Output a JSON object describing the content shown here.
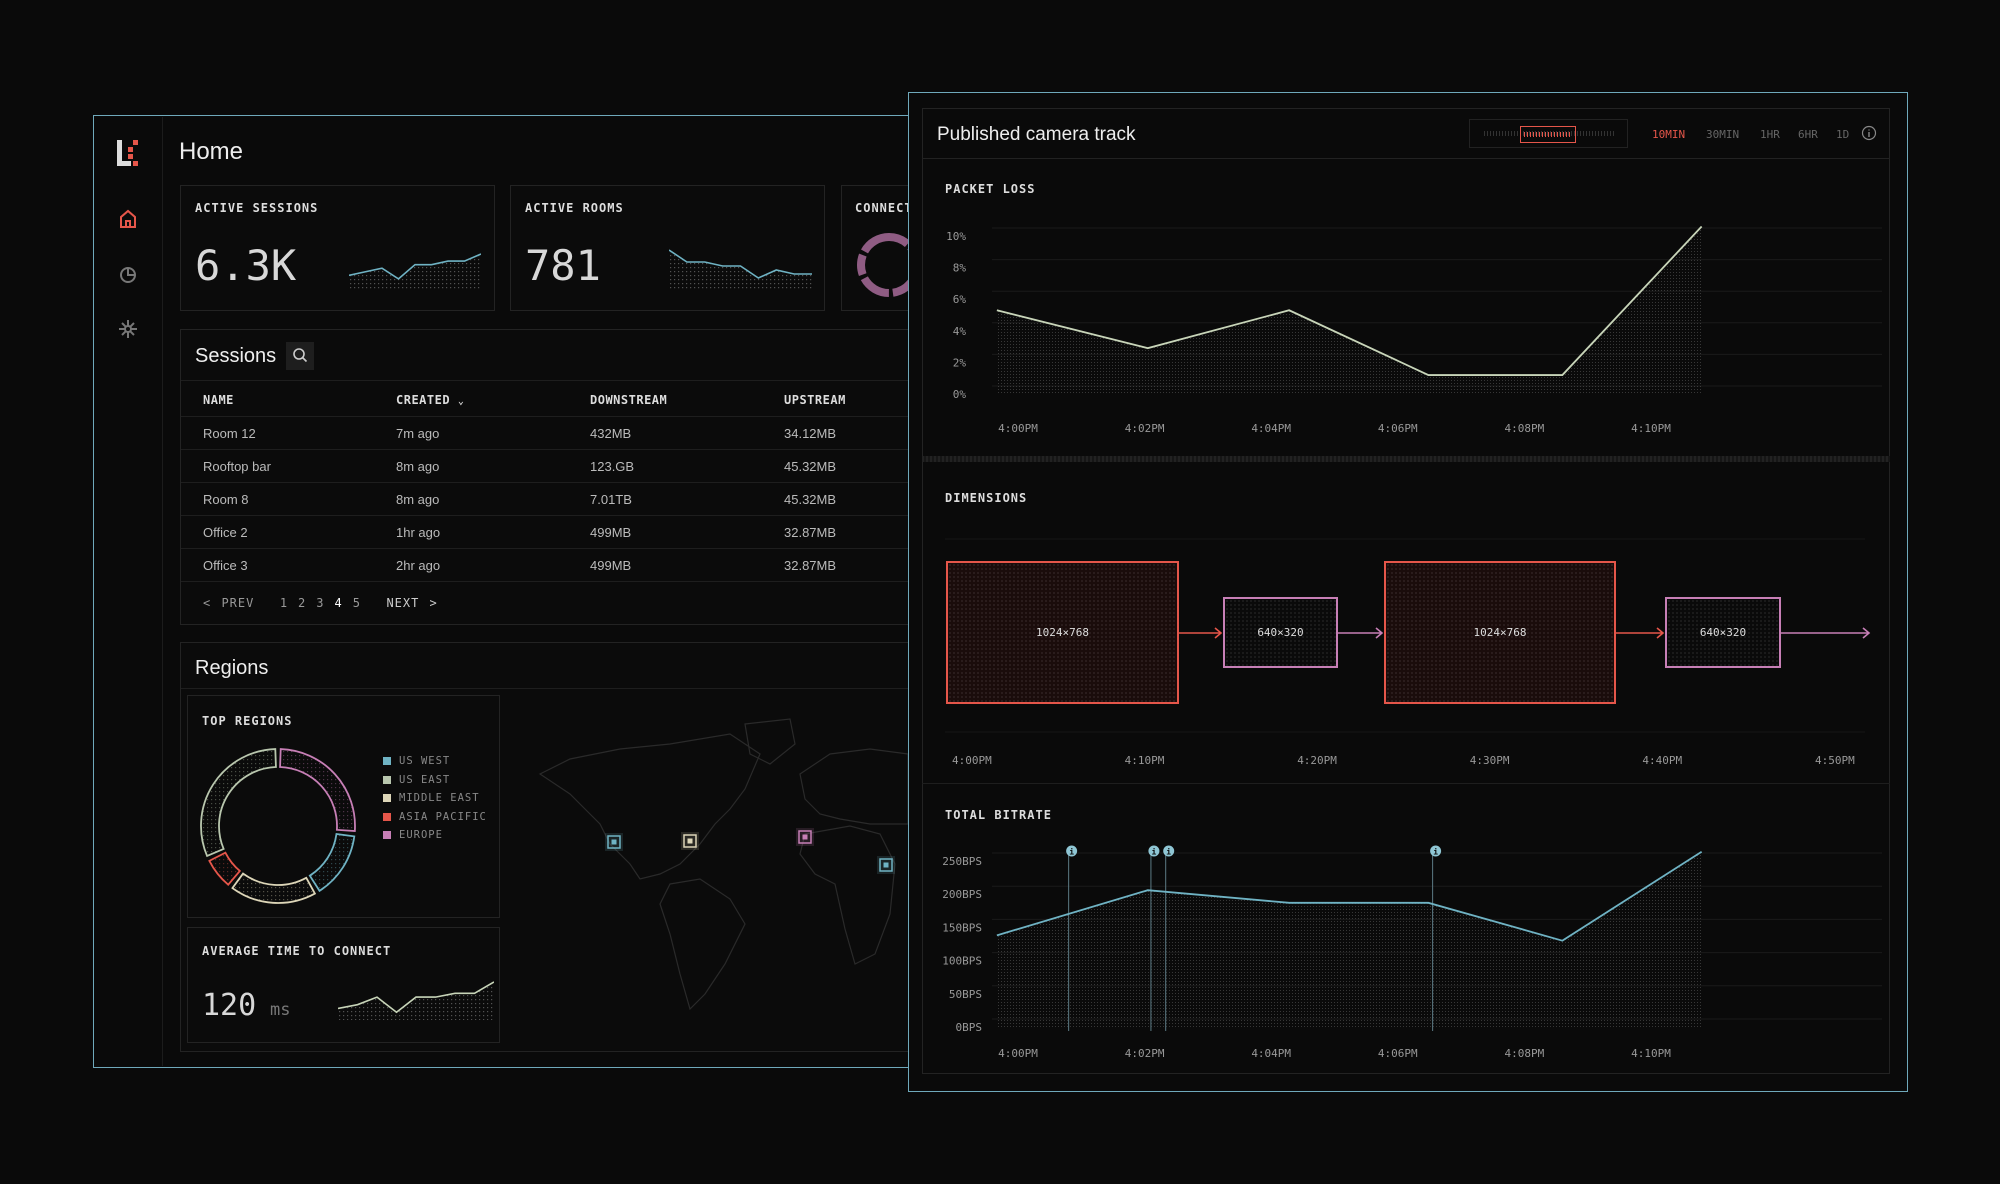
{
  "app": {
    "title": "Home",
    "nav": [
      {
        "icon": "home-icon",
        "active": true
      },
      {
        "icon": "clock-icon"
      },
      {
        "icon": "settings-icon"
      }
    ]
  },
  "colors": {
    "accent": "#e5564a",
    "teal": "#6fb3c4",
    "line": "#c8d5b9",
    "border": "#6fa9bb"
  },
  "cards": [
    {
      "label": "ACTIVE SESSIONS",
      "value": "6.3K",
      "trend": [
        3,
        4,
        5,
        2,
        6,
        6,
        7,
        7,
        9
      ]
    },
    {
      "label": "ACTIVE ROOMS",
      "value": "781",
      "trend": [
        9,
        6,
        6,
        5,
        5,
        2,
        4,
        3,
        3
      ]
    },
    {
      "label": "CONNECT"
    }
  ],
  "sessions": {
    "title": "Sessions",
    "columns": [
      "NAME",
      "CREATED",
      "DOWNSTREAM",
      "UPSTREAM"
    ],
    "rows": [
      [
        "Room 12",
        "7m ago",
        "432MB",
        "34.12MB"
      ],
      [
        "Rooftop bar",
        "8m ago",
        "123.GB",
        "45.32MB"
      ],
      [
        "Room 8",
        "8m ago",
        "7.01TB",
        "45.32MB"
      ],
      [
        "Office 2",
        "1hr ago",
        "499MB",
        "32.87MB"
      ],
      [
        "Office 3",
        "2hr ago",
        "499MB",
        "32.87MB"
      ]
    ],
    "pagination": {
      "prev": "< PREV",
      "pages": [
        "1",
        "2",
        "3",
        "4",
        "5"
      ],
      "current": "4",
      "next": "NEXT >"
    }
  },
  "regions": {
    "title": "Regions",
    "top_title": "TOP REGIONS",
    "items": [
      {
        "name": "US WEST",
        "color": "#6fb3c4",
        "value": 14
      },
      {
        "name": "US EAST",
        "color": "#b9c7ae",
        "value": 30
      },
      {
        "name": "MIDDLE EAST",
        "color": "#ddd6b8",
        "value": 18
      },
      {
        "name": "ASIA PACIFIC",
        "color": "#e5564a",
        "value": 7
      },
      {
        "name": "EUROPE",
        "color": "#c77fb6",
        "value": 25
      }
    ],
    "avg_title": "AVERAGE TIME TO CONNECT",
    "avg_value": "120",
    "avg_unit": "ms",
    "avg_trend": [
      2,
      3,
      5,
      1,
      5,
      5,
      6,
      6,
      9
    ]
  },
  "track": {
    "title": "Published camera track",
    "ranges": [
      "10MIN",
      "30MIN",
      "1HR",
      "6HR",
      "1D"
    ],
    "active_range": "10MIN"
  },
  "chart_data": [
    {
      "type": "area",
      "title": "PACKET LOSS",
      "ylim": [
        0,
        10
      ],
      "yticks": [
        "10%",
        "8%",
        "6%",
        "4%",
        "2%",
        "0%"
      ],
      "xticks": [
        "4:00PM",
        "4:02PM",
        "4:04PM",
        "4:06PM",
        "4:08PM",
        "4:10PM"
      ],
      "x": [
        "3:59:40PM",
        "4:02:03PM",
        "4:04:17PM",
        "4:06:29PM",
        "4:08:36PM",
        "4:10:48PM"
      ],
      "values": [
        5.3,
        2.9,
        5.3,
        1.2,
        1.2,
        10.6
      ],
      "grid": true
    },
    {
      "type": "diagram",
      "title": "DIMENSIONS",
      "segments": [
        {
          "label": "1024×768",
          "color": "#e5564a"
        },
        {
          "label": "640×320",
          "color": "#c77fb6"
        },
        {
          "label": "1024×768",
          "color": "#e5564a"
        },
        {
          "label": "640×320",
          "color": "#c77fb6"
        }
      ],
      "xticks": [
        "4:00PM",
        "4:10PM",
        "4:20PM",
        "4:30PM",
        "4:40PM",
        "4:50PM"
      ]
    },
    {
      "type": "area",
      "title": "TOTAL BITRATE",
      "ylim": [
        0,
        250
      ],
      "yticks": [
        "250BPS",
        "200BPS",
        "150BPS",
        "100BPS",
        "50BPS",
        "0BPS"
      ],
      "xticks": [
        "4:00PM",
        "4:02PM",
        "4:04PM",
        "4:06PM",
        "4:08PM",
        "4:10PM"
      ],
      "x": [
        "3:59:40PM",
        "4:02:03PM",
        "4:04:17PM",
        "4:06:29PM",
        "4:08:36PM",
        "4:10:48PM"
      ],
      "values": [
        138,
        206,
        187,
        187,
        130,
        264
      ],
      "annotations": [
        "4:00:48PM",
        "4:02:06PM",
        "4:02:20PM",
        "4:06:33PM"
      ],
      "grid": true
    }
  ]
}
